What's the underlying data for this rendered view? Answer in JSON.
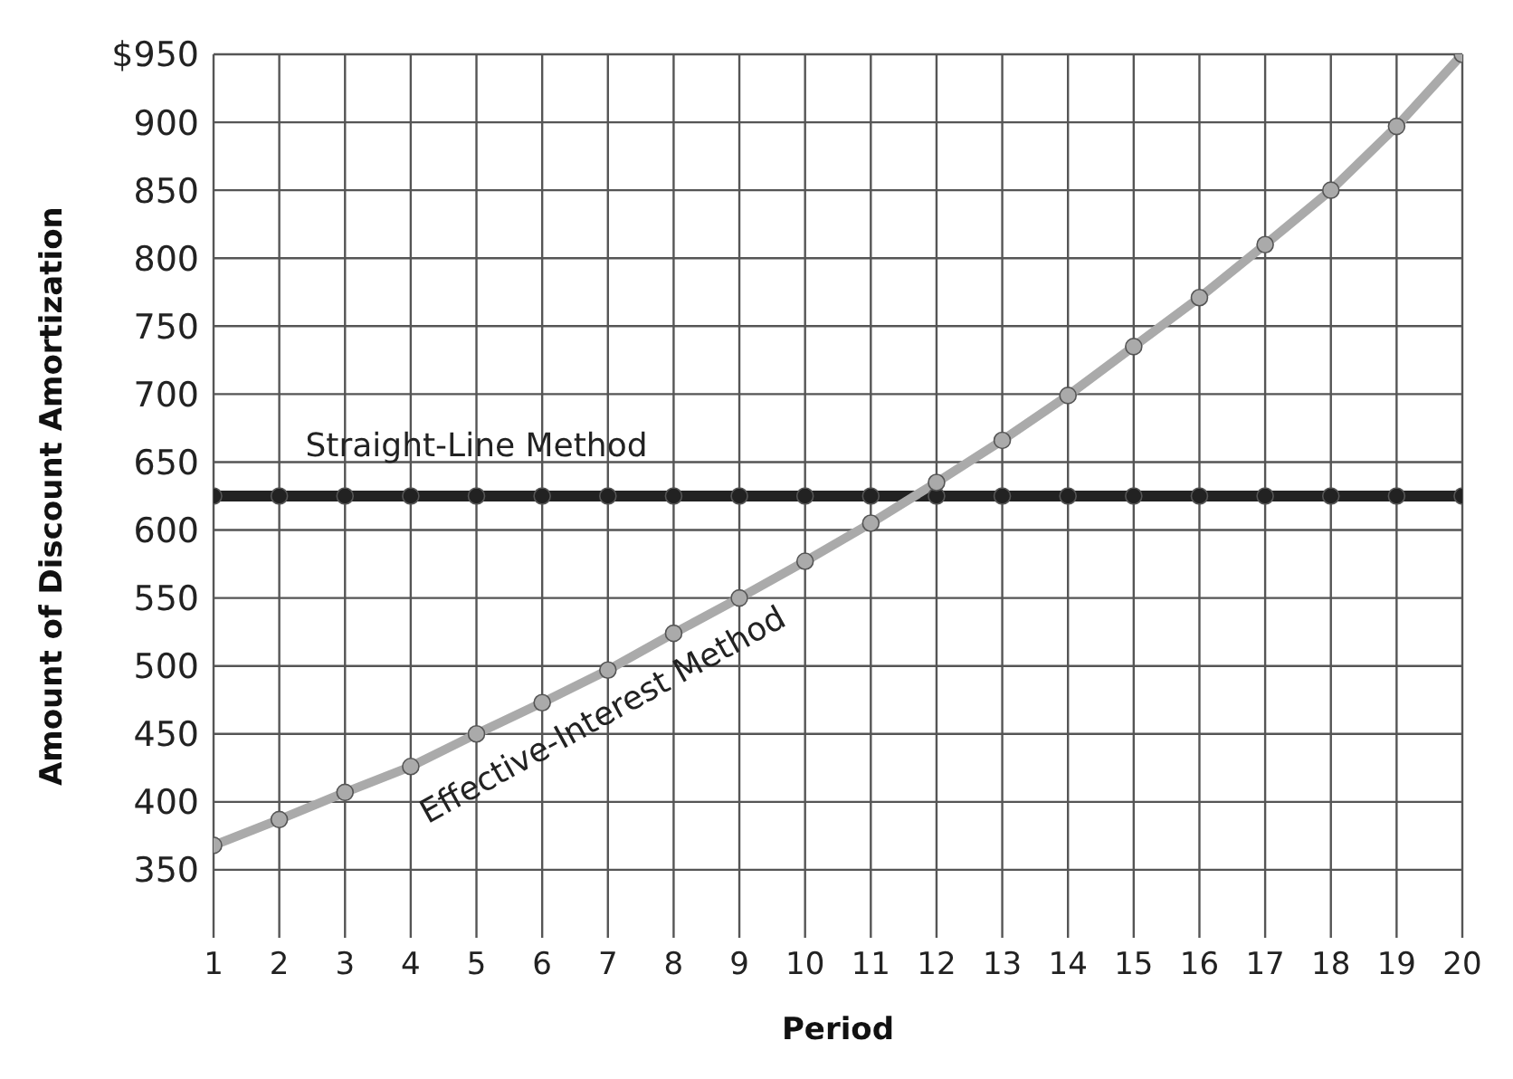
{
  "chart_data": {
    "type": "line",
    "xlabel": "Period",
    "ylabel": "Amount of Discount Amortization",
    "x": [
      1,
      2,
      3,
      4,
      5,
      6,
      7,
      8,
      9,
      10,
      11,
      12,
      13,
      14,
      15,
      16,
      17,
      18,
      19,
      20
    ],
    "series": [
      {
        "name": "Straight-Line Method",
        "color": "#222222",
        "values": [
          625,
          625,
          625,
          625,
          625,
          625,
          625,
          625,
          625,
          625,
          625,
          625,
          625,
          625,
          625,
          625,
          625,
          625,
          625,
          625
        ]
      },
      {
        "name": "Effective-Interest Method",
        "color": "#aaaaaa",
        "values": [
          368,
          387,
          407,
          426,
          450,
          473,
          497,
          524,
          550,
          577,
          605,
          635,
          666,
          699,
          735,
          771,
          810,
          850,
          897,
          950
        ]
      }
    ],
    "xlim": [
      1,
      20
    ],
    "xticks": [
      1,
      2,
      3,
      4,
      5,
      6,
      7,
      8,
      9,
      10,
      11,
      12,
      13,
      14,
      15,
      16,
      17,
      18,
      19,
      20
    ],
    "ylim": [
      300,
      950
    ],
    "yticks": [
      350,
      400,
      450,
      500,
      550,
      600,
      650,
      700,
      750,
      800,
      850,
      900,
      {
        "value": 950,
        "label": "$950"
      }
    ],
    "grid": true,
    "legend": false,
    "marker": "circle",
    "line_style": "solid"
  }
}
